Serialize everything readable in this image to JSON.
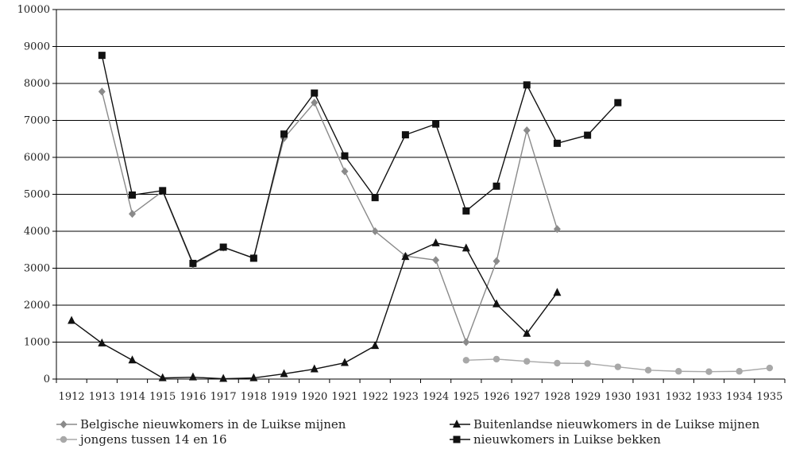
{
  "chart_data": {
    "type": "line",
    "x": [
      "1912",
      "1913",
      "1914",
      "1915",
      "1916",
      "1917",
      "1918",
      "1919",
      "1920",
      "1921",
      "1922",
      "1923",
      "1924",
      "1925",
      "1926",
      "1927",
      "1928",
      "1929",
      "1930",
      "1931",
      "1932",
      "1933",
      "1934",
      "1935"
    ],
    "ylim": [
      0,
      10000
    ],
    "yticks": [
      "0",
      "1000",
      "2000",
      "3000",
      "4000",
      "5000",
      "6000",
      "7000",
      "8000",
      "9000",
      "10000"
    ],
    "grid": true,
    "legend_position": "bottom",
    "series": [
      {
        "name": "Belgische nieuwkomers in de Luikse mijnen",
        "marker": "diamond",
        "color": "#8a8a8a",
        "values": [
          null,
          7780,
          4470,
          5080,
          3100,
          3560,
          3280,
          6520,
          7480,
          5620,
          4000,
          3330,
          3220,
          1000,
          3190,
          6730,
          4060,
          null,
          null,
          null,
          null,
          null,
          null,
          null
        ]
      },
      {
        "name": "Buitenlandse nieuwkomers in de Luikse mijnen",
        "marker": "triangle",
        "color": "#111111",
        "values": [
          1580,
          970,
          510,
          30,
          50,
          10,
          30,
          140,
          270,
          440,
          900,
          3310,
          3680,
          3540,
          2030,
          1230,
          2340,
          null,
          null,
          null,
          null,
          null,
          null,
          null
        ]
      },
      {
        "name": "jongens tussen 14 en 16",
        "marker": "circle",
        "color": "#a8a8a8",
        "values": [
          null,
          null,
          null,
          null,
          null,
          null,
          null,
          null,
          null,
          null,
          null,
          null,
          null,
          510,
          540,
          480,
          430,
          420,
          330,
          240,
          210,
          200,
          210,
          300
        ]
      },
      {
        "name": "nieuwkomers in Luikse bekken",
        "marker": "square",
        "color": "#111111",
        "values": [
          null,
          8760,
          4980,
          5100,
          3130,
          3570,
          3270,
          6630,
          7740,
          6040,
          4910,
          6610,
          6900,
          4550,
          5220,
          7960,
          6380,
          6600,
          7480,
          null,
          null,
          null,
          null,
          null
        ]
      }
    ]
  }
}
